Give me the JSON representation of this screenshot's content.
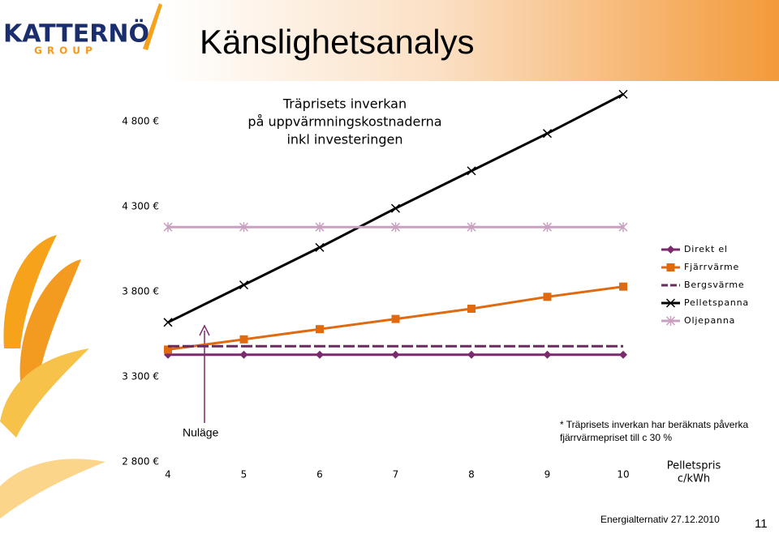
{
  "slide": {
    "title": "Känslighetsanalys",
    "logo": "KATTERNÖ",
    "logo_sub": "GROUP",
    "footer": "Energialternativ 27.12.2010",
    "page_number": "11"
  },
  "chart_data": {
    "type": "line",
    "title": [
      "Träprisets inverkan",
      "på uppvärmningskostnaderna",
      "inkl investeringen"
    ],
    "x_label": [
      "Pelletspris",
      "c/kWh"
    ],
    "x": [
      4,
      5,
      6,
      7,
      8,
      9,
      10
    ],
    "xlim": [
      4,
      10
    ],
    "ylim": [
      2800,
      5000
    ],
    "yticks": [
      {
        "value": 2800,
        "label": "2 800 €"
      },
      {
        "value": 3300,
        "label": "3 300 €"
      },
      {
        "value": 3800,
        "label": "3 800 €"
      },
      {
        "value": 4300,
        "label": "4 300 €"
      },
      {
        "value": 4800,
        "label": "4 800 €"
      }
    ],
    "series": [
      {
        "name": "Direkt el",
        "color": "#7b2a6e",
        "marker": "diamond",
        "dash": false,
        "values": [
          3430,
          3430,
          3430,
          3430,
          3430,
          3430,
          3430
        ]
      },
      {
        "name": "Fjärrvärme",
        "color": "#e06a10",
        "marker": "square",
        "dash": false,
        "values": [
          3460,
          3520,
          3580,
          3640,
          3700,
          3770,
          3830
        ]
      },
      {
        "name": "Bergsvärme",
        "color": "#6a2a5e",
        "marker": "none",
        "dash": true,
        "values": [
          3480,
          3480,
          3480,
          3480,
          3480,
          3480,
          3480
        ]
      },
      {
        "name": "Pelletspanna",
        "color": "#000000",
        "marker": "x",
        "dash": false,
        "values": [
          3620,
          3840,
          4060,
          4290,
          4510,
          4730,
          4960
        ]
      },
      {
        "name": "Oljepanna",
        "color": "#c8a0c0",
        "marker": "star",
        "dash": false,
        "values": [
          4180,
          4180,
          4180,
          4180,
          4180,
          4180,
          4180
        ]
      }
    ],
    "annotation": "Nuläge",
    "note": [
      "* Träprisets inverkan har beräknats påverka",
      "fjärrvärmepriset till c 30 %"
    ]
  }
}
